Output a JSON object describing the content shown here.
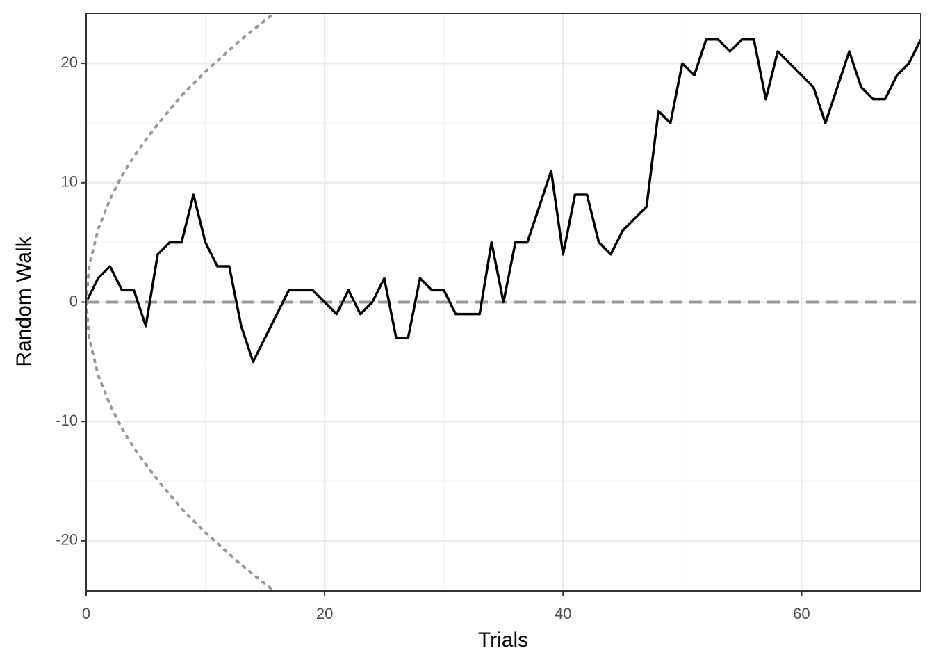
{
  "chart_data": {
    "type": "line",
    "x_label": "Trials",
    "y_label": "Random Walk",
    "xlim": [
      0,
      70
    ],
    "ylim": [
      -24.2,
      24.2
    ],
    "xticks": [
      0,
      20,
      40,
      60
    ],
    "yticks": [
      -20,
      -10,
      0,
      10,
      20
    ],
    "x_minor_ticks": [
      10,
      30,
      50,
      70
    ],
    "y_minor_ticks": [
      -15,
      -5,
      5,
      15
    ],
    "grid": true,
    "hline": 0,
    "hline_color": "#999999",
    "series": [
      {
        "color": "#000000",
        "style": "solid",
        "x": [
          0,
          1,
          2,
          3,
          4,
          5,
          6,
          7,
          8,
          9,
          10,
          11,
          12,
          13,
          14,
          15,
          16,
          17,
          18,
          19,
          20,
          21,
          22,
          23,
          24,
          25,
          26,
          27,
          28,
          29,
          30,
          31,
          32,
          33,
          34,
          35,
          36,
          37,
          38,
          39,
          40,
          41,
          42,
          43,
          44,
          45,
          46,
          47,
          48,
          49,
          50,
          51,
          52,
          53,
          54,
          55,
          56,
          57,
          58,
          59,
          60,
          61,
          62,
          63,
          64,
          65,
          66,
          67,
          68,
          69,
          70
        ],
        "values": [
          0,
          2,
          3,
          1,
          1,
          -2,
          4,
          5,
          5,
          9,
          5,
          3,
          3,
          -2,
          -5,
          -3,
          -1,
          1,
          1,
          1,
          0,
          -1,
          1,
          -1,
          0,
          2,
          -3,
          -3,
          2,
          1,
          1,
          -1,
          -1,
          -1,
          5,
          0,
          5,
          5,
          8,
          11,
          4,
          9,
          9,
          5,
          4,
          6,
          7,
          8,
          16,
          15,
          20,
          19,
          22,
          22,
          21,
          22,
          22,
          17,
          21,
          20,
          19,
          18,
          15,
          18,
          21,
          18,
          17,
          17,
          19,
          20,
          22
        ]
      },
      {
        "color": "#999999",
        "style": "dotted",
        "x": [
          0,
          0.25,
          1,
          2,
          3,
          4,
          5,
          6,
          7,
          8,
          9,
          10,
          11,
          12,
          13,
          14,
          15,
          16
        ],
        "values": [
          0,
          3,
          6.1,
          8.6,
          10.6,
          12.2,
          13.6,
          14.9,
          16.1,
          17.3,
          18.3,
          19.3,
          20.2,
          21.1,
          22,
          22.8,
          23.6,
          24.4
        ]
      },
      {
        "color": "#999999",
        "style": "dotted",
        "x": [
          0,
          0.25,
          1,
          2,
          3,
          4,
          5,
          6,
          7,
          8,
          9,
          10,
          11,
          12,
          13,
          14,
          15,
          16
        ],
        "values": [
          0,
          -3,
          -6.1,
          -8.6,
          -10.6,
          -12.2,
          -13.6,
          -14.9,
          -16.1,
          -17.3,
          -18.3,
          -19.3,
          -20.2,
          -21.1,
          -22,
          -22.8,
          -23.6,
          -24.4
        ]
      }
    ]
  }
}
